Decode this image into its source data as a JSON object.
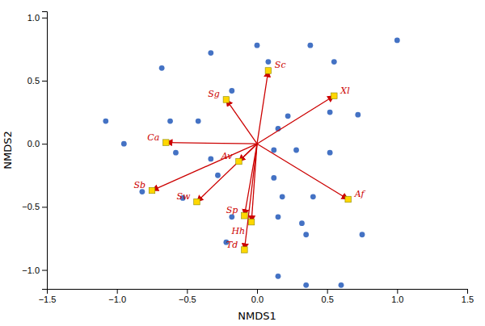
{
  "chart_data": {
    "type": "scatter",
    "xlabel": "NMDS1",
    "ylabel": "NMDS2",
    "xlim": [
      -1.5,
      1.5
    ],
    "ylim": [
      -1.15,
      1.05
    ],
    "xticks": [
      {
        "value": -1.5,
        "label": "−1.5"
      },
      {
        "value": -1.0,
        "label": "−1.0"
      },
      {
        "value": -0.5,
        "label": "−0.5"
      },
      {
        "value": 0.0,
        "label": "0.0"
      },
      0.5,
      {
        "value": 1.0,
        "label": "1.0"
      },
      1.5
    ],
    "yticks": [
      {
        "value": -1.0,
        "label": "−1.0"
      },
      {
        "value": -0.5,
        "label": "−0.5"
      },
      {
        "value": 0.0,
        "label": "0.0"
      },
      0.5,
      {
        "value": 1.0,
        "label": "1.0"
      }
    ],
    "series": [
      {
        "type": "scatter",
        "marker": "circle",
        "color": "#4472C4",
        "x": [
          0.0,
          0.38,
          1.0,
          -0.33,
          0.08,
          0.55,
          -0.68,
          -0.18,
          -0.62,
          -1.08,
          -0.42,
          0.22,
          0.52,
          0.72,
          0.15,
          -0.95,
          0.12,
          0.28,
          -0.58,
          -0.33,
          0.52,
          -0.28,
          0.12,
          -0.82,
          -0.53,
          0.18,
          0.4,
          -0.18,
          0.15,
          0.32,
          -0.22,
          0.35,
          0.75,
          0.15,
          0.35,
          0.6
        ],
        "values": [
          0.78,
          0.78,
          0.82,
          0.72,
          0.65,
          0.65,
          0.6,
          0.42,
          0.18,
          0.18,
          0.18,
          0.22,
          0.25,
          0.23,
          0.12,
          0.0,
          -0.05,
          -0.05,
          -0.07,
          -0.12,
          -0.07,
          -0.25,
          -0.27,
          -0.38,
          -0.43,
          -0.42,
          -0.42,
          -0.58,
          -0.58,
          -0.63,
          -0.78,
          -0.72,
          -0.72,
          -1.05,
          -1.12,
          -1.12
        ]
      },
      {
        "type": "vector",
        "marker": "square",
        "color": "#CC0000",
        "labels": [
          "Sc",
          "Sg",
          "Ca",
          "Av",
          "Sb",
          "Sw",
          "Sp",
          "Hh",
          "Td",
          "Af",
          "Xl"
        ],
        "x": [
          0.08,
          -0.22,
          -0.65,
          -0.13,
          -0.75,
          -0.43,
          -0.09,
          -0.04,
          -0.09,
          0.65,
          0.55
        ],
        "values": [
          0.58,
          0.35,
          0.01,
          -0.14,
          -0.37,
          -0.46,
          -0.57,
          -0.62,
          -0.84,
          -0.44,
          0.38
        ]
      }
    ]
  }
}
